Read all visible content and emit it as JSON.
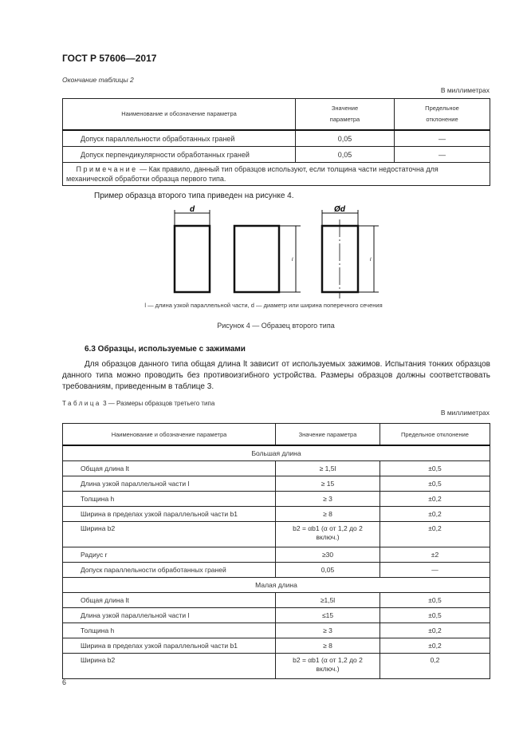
{
  "header": {
    "title": "ГОСТ Р 57606—2017"
  },
  "table2": {
    "caption": "Окончание таблицы 2",
    "unit": "В миллиметрах",
    "columns": [
      "Наименование и обозначение параметра",
      "Значение параметра",
      "Предельное отклонение"
    ],
    "columns_lines": [
      [
        "Наименование и обозначение параметра"
      ],
      [
        "Значение",
        "параметра"
      ],
      [
        "Предельное",
        "отклонение"
      ]
    ],
    "rows": [
      [
        "Допуск параллельности обработанных граней",
        "0,05",
        "—"
      ],
      [
        "Допуск перпендикулярности обработанных граней",
        "0,05",
        "—"
      ]
    ],
    "note_label": "Примечание",
    "note_text": " — Как правило, данный тип образцов используют, если толщина части недостаточна для механической обработки образца первого типа."
  },
  "intro_text": "Пример образца второго типа приведен на рисунке 4.",
  "figure": {
    "labels": {
      "d": "d",
      "diam_d": "Ød",
      "l": "l"
    },
    "legend": "l — длина узкой параллельной части, d — диаметр или ширина поперечного сечения",
    "caption": "Рисунок 4 — Образец второго типа"
  },
  "section": {
    "title": "6.3 Образцы, используемые с зажимами",
    "paragraph": "Для образцов данного типа общая длина lt зависит от используемых зажимов. Испытания тонких образцов данного типа можно проводить без противоизгибного устройства. Размеры образцов должны соответствовать требованиям, приведенным в таблице 3."
  },
  "table3": {
    "caption_label": "Таблица",
    "caption_text": " 3 — Размеры образцов третьего типа",
    "unit": "В миллиметрах",
    "columns": [
      "Наименование и обозначение параметра",
      "Значение параметра",
      "Предельное отклонение"
    ],
    "groups": [
      {
        "title": "Большая длина",
        "rows": [
          [
            "Общая длина lt",
            "≥ 1,5l",
            "±0,5"
          ],
          [
            "Длина узкой параллельной части l",
            "≥ 15",
            "±0,5"
          ],
          [
            "Толщина h",
            "≥ 3",
            "±0,2"
          ],
          [
            "Ширина в пределах узкой параллельной части b1",
            "≥ 8",
            "±0,2"
          ],
          [
            "Ширина b2",
            "b2 = αb1 (α от 1,2 до 2 включ.)",
            "±0,2"
          ],
          [
            "Радиус r",
            "≥30",
            "±2"
          ],
          [
            "Допуск параллельности обработанных граней",
            "0,05",
            "—"
          ]
        ]
      },
      {
        "title": "Малая длина",
        "rows": [
          [
            "Общая длина lt",
            "≥1,5l",
            "±0,5"
          ],
          [
            "Длина узкой параллельной части l",
            "≤15",
            "±0,5"
          ],
          [
            "Толщина h",
            "≥ 3",
            "±0,2"
          ],
          [
            "Ширина в пределах узкой параллельной части b1",
            "≥ 8",
            "±0,2"
          ],
          [
            "Ширина b2",
            "b2 = αb1 (α от 1,2 до 2 включ.)",
            "0,2"
          ]
        ]
      }
    ]
  },
  "footer": {
    "page_number": "6"
  }
}
